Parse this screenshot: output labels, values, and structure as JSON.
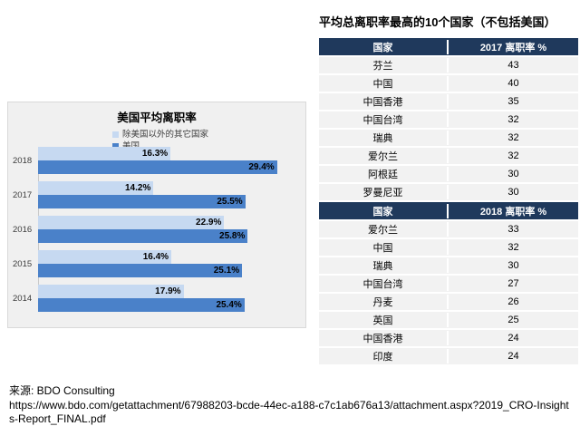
{
  "chart_data": [
    {
      "type": "bar",
      "orientation": "horizontal",
      "title": "美国平均离职率",
      "categories": [
        "2018",
        "2017",
        "2016",
        "2015",
        "2014"
      ],
      "series": [
        {
          "name": "除美国以外的其它国家",
          "color": "#c6d9f1",
          "values": [
            16.3,
            14.2,
            22.9,
            16.4,
            17.9
          ],
          "labels": [
            "16.3%",
            "14.2%",
            "22.9%",
            "16.4%",
            "17.9%"
          ]
        },
        {
          "name": "美国",
          "color": "#4a81c9",
          "values": [
            29.4,
            25.5,
            25.8,
            25.1,
            25.4
          ],
          "labels": [
            "29.4%",
            "25.5%",
            "25.8%",
            "25.1%",
            "25.4%"
          ]
        }
      ],
      "xlim": [
        0,
        32
      ],
      "grid": false,
      "legend_position": "top",
      "panel_background": "#f0f0f0"
    },
    {
      "type": "table",
      "title": "平均总离职率最高的10个国家（不包括美国）",
      "header_background": "#1f395c",
      "row_background": "#f2f2f2",
      "sections": [
        {
          "header": [
            "国家",
            "2017 离职率 %"
          ],
          "rows": [
            [
              "芬兰",
              "43"
            ],
            [
              "中国",
              "40"
            ],
            [
              "中国香港",
              "35"
            ],
            [
              "中国台湾",
              "32"
            ],
            [
              "瑞典",
              "32"
            ],
            [
              "爱尔兰",
              "32"
            ],
            [
              "阿根廷",
              "30"
            ],
            [
              "罗曼尼亚",
              "30"
            ]
          ]
        },
        {
          "header": [
            "国家",
            "2018 离职率 %"
          ],
          "rows": [
            [
              "爱尔兰",
              "33"
            ],
            [
              "中国",
              "32"
            ],
            [
              "瑞典",
              "30"
            ],
            [
              "中国台湾",
              "27"
            ],
            [
              "丹麦",
              "26"
            ],
            [
              "英国",
              "25"
            ],
            [
              "中国香港",
              "24"
            ],
            [
              "印度",
              "24"
            ]
          ]
        }
      ]
    }
  ],
  "source": {
    "label": "来源: BDO Consulting",
    "url": "https://www.bdo.com/getattachment/67988203-bcde-44ec-a188-c7c1ab676a13/attachment.aspx?2019_CRO-Insights-Report_FINAL.pdf"
  }
}
